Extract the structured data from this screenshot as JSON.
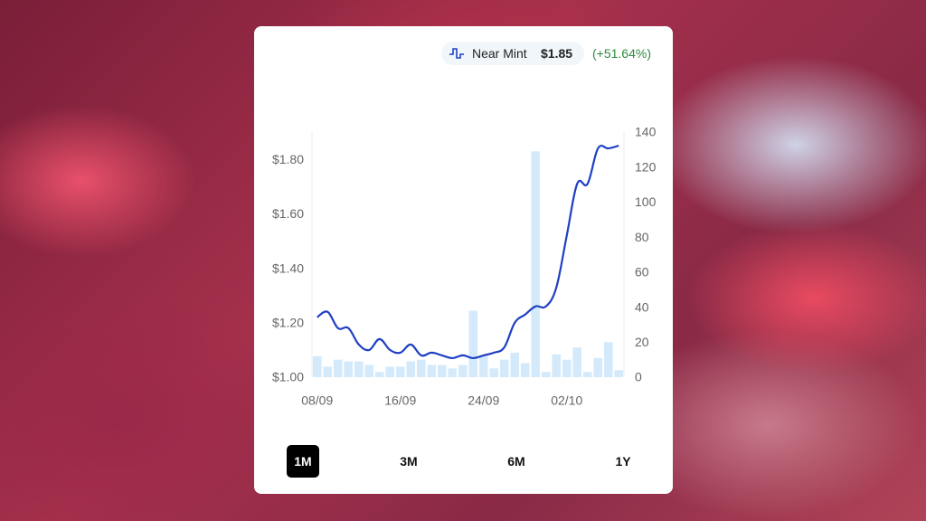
{
  "header": {
    "condition": "Near Mint",
    "price": "$1.85",
    "change": "(+51.64%)"
  },
  "chart_data": {
    "type": "combo",
    "categories": [
      "08/09",
      null,
      null,
      null,
      null,
      null,
      null,
      null,
      "16/09",
      null,
      null,
      null,
      null,
      null,
      null,
      null,
      "24/09",
      null,
      null,
      null,
      null,
      null,
      null,
      null,
      "02/10",
      null,
      null,
      null,
      null,
      null
    ],
    "series": [
      {
        "type": "bar",
        "axis": "y2",
        "color": "#d4eafb",
        "values": [
          12,
          6,
          10,
          9,
          9,
          7,
          3,
          6,
          6,
          9,
          10,
          7,
          7,
          5,
          7,
          38,
          12,
          5,
          10,
          14,
          8,
          129,
          3,
          13,
          10,
          17,
          3,
          11,
          20,
          4
        ]
      },
      {
        "type": "line",
        "axis": "y",
        "color": "#1f3fc4",
        "values": [
          1.22,
          1.24,
          1.18,
          1.18,
          1.12,
          1.1,
          1.14,
          1.1,
          1.09,
          1.12,
          1.08,
          1.09,
          1.08,
          1.07,
          1.08,
          1.07,
          1.08,
          1.09,
          1.11,
          1.2,
          1.23,
          1.26,
          1.26,
          1.33,
          1.52,
          1.71,
          1.71,
          1.84,
          1.84,
          1.85
        ]
      }
    ],
    "ylim": [
      1.0,
      1.9
    ],
    "yticks": [
      {
        "value": 1.0,
        "label": "$1.00"
      },
      {
        "value": 1.2,
        "label": "$1.20"
      },
      {
        "value": 1.4,
        "label": "$1.40"
      },
      {
        "value": 1.6,
        "label": "$1.60"
      },
      {
        "value": 1.8,
        "label": "$1.80"
      }
    ],
    "y2lim": [
      0,
      140
    ],
    "y2ticks": [
      0,
      20,
      40,
      60,
      80,
      100,
      120,
      140
    ],
    "grid": false
  },
  "ranges": [
    "1M",
    "3M",
    "6M",
    "1Y"
  ],
  "selected_range": 0
}
